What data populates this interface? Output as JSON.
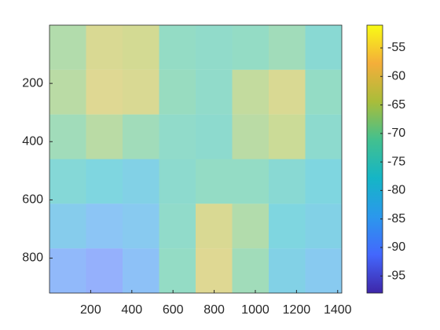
{
  "chart_data": {
    "type": "heatmap",
    "x": [
      0,
      177.5,
      355,
      532.5,
      710,
      887.5,
      1065,
      1242.5,
      1420
    ],
    "y": [
      0,
      153.3,
      306.7,
      460,
      613.3,
      766.7,
      920
    ],
    "values": [
      [
        -68,
        -63,
        -64,
        -72,
        -73,
        -72,
        -70,
        -75
      ],
      [
        -67,
        -62,
        -63,
        -71,
        -73,
        -66,
        -63,
        -72
      ],
      [
        -70,
        -67,
        -70,
        -73,
        -74,
        -67,
        -65,
        -74
      ],
      [
        -76,
        -78,
        -80,
        -74,
        -72,
        -72,
        -75,
        -78
      ],
      [
        -82,
        -85,
        -83,
        -73,
        -63,
        -68,
        -78,
        -80
      ],
      [
        -88,
        -90,
        -86,
        -72,
        -62,
        -70,
        -80,
        -83
      ]
    ],
    "xlim": [
      0,
      1420
    ],
    "xticks": [
      200,
      400,
      600,
      800,
      1000,
      1200,
      1400
    ],
    "ylim": [
      0,
      920
    ],
    "yticks": [
      200,
      400,
      600,
      800
    ],
    "y_reversed": true,
    "clim": [
      -98,
      -51
    ],
    "cticks": [
      -95,
      -90,
      -85,
      -80,
      -75,
      -70,
      -65,
      -60,
      -55
    ],
    "colormap": [
      "#3e26a8",
      "#4367fd",
      "#2b98ec",
      "#15b5c6",
      "#42c08f",
      "#a9bd3a",
      "#f4ae3a",
      "#f9fb15"
    ]
  }
}
